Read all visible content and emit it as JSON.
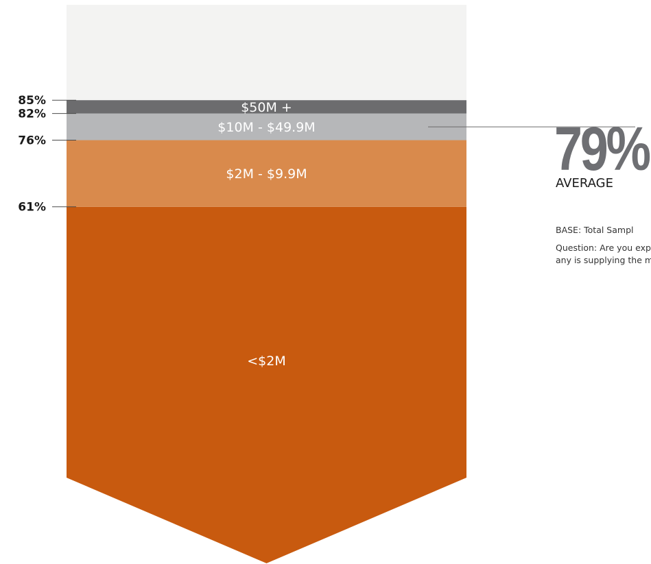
{
  "chart_data": {
    "type": "stacked-funnel",
    "unit": "%",
    "scale_max": 100,
    "bands": [
      {
        "label": "<$2M",
        "value": 61,
        "color": "#c85a0f"
      },
      {
        "label": "$2M - $9.9M",
        "value": 76,
        "color": "#d98a4c"
      },
      {
        "label": "$10M - $49.9M",
        "value": 82,
        "color": "#b6b7b9"
      },
      {
        "label": "$50M +",
        "value": 85,
        "color": "#6c6c6e"
      }
    ],
    "ticks": [
      "85%",
      "82%",
      "76%",
      "61%"
    ],
    "background_color": "#f3f3f2",
    "average": {
      "value": "79%",
      "label": "AVERAGE",
      "pointer_value": 79,
      "value_color": "#6e6f73"
    }
  },
  "notes": {
    "base": "BASE: Total Sampl",
    "question": "Question: Are you experiencing any is supplying the mark"
  }
}
